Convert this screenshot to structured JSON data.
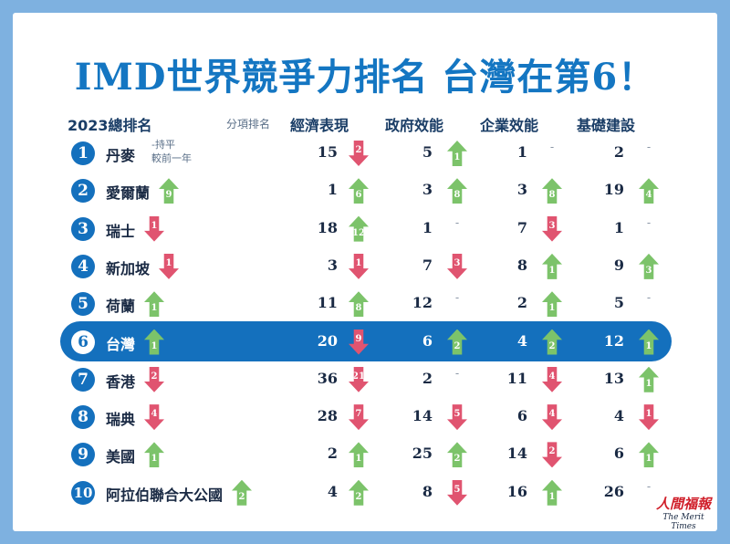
{
  "title": "IMD世界競爭力排名 台灣在第6！",
  "chart_data": {
    "type": "table",
    "columns": {
      "overall": "2023總排名",
      "sub": "分項排名",
      "economy": "經濟表現",
      "government": "政府效能",
      "business": "企業效能",
      "infrastructure": "基礎建設"
    },
    "legend_note": {
      "line1": "-持平",
      "line2": "較前一年"
    },
    "highlight_rank": 6,
    "rows": [
      {
        "rank": "1",
        "name": "丹麥",
        "change": null,
        "cells": [
          {
            "value": "15",
            "dir": "down",
            "delta": "2"
          },
          {
            "value": "5",
            "dir": "up",
            "delta": "1"
          },
          {
            "value": "1",
            "dir": "flat",
            "delta": "-"
          },
          {
            "value": "2",
            "dir": "flat",
            "delta": "-"
          }
        ]
      },
      {
        "rank": "2",
        "name": "愛爾蘭",
        "change": {
          "dir": "up",
          "delta": "9"
        },
        "cells": [
          {
            "value": "1",
            "dir": "up",
            "delta": "6"
          },
          {
            "value": "3",
            "dir": "up",
            "delta": "8"
          },
          {
            "value": "3",
            "dir": "up",
            "delta": "8"
          },
          {
            "value": "19",
            "dir": "up",
            "delta": "4"
          }
        ]
      },
      {
        "rank": "3",
        "name": "瑞士",
        "change": {
          "dir": "down",
          "delta": "1"
        },
        "cells": [
          {
            "value": "18",
            "dir": "up",
            "delta": "12"
          },
          {
            "value": "1",
            "dir": "flat",
            "delta": "-"
          },
          {
            "value": "7",
            "dir": "down",
            "delta": "3"
          },
          {
            "value": "1",
            "dir": "flat",
            "delta": "-"
          }
        ]
      },
      {
        "rank": "4",
        "name": "新加坡",
        "change": {
          "dir": "down",
          "delta": "1"
        },
        "cells": [
          {
            "value": "3",
            "dir": "down",
            "delta": "1"
          },
          {
            "value": "7",
            "dir": "down",
            "delta": "3"
          },
          {
            "value": "8",
            "dir": "up",
            "delta": "1"
          },
          {
            "value": "9",
            "dir": "up",
            "delta": "3"
          }
        ]
      },
      {
        "rank": "5",
        "name": "荷蘭",
        "change": {
          "dir": "up",
          "delta": "1"
        },
        "cells": [
          {
            "value": "11",
            "dir": "up",
            "delta": "8"
          },
          {
            "value": "12",
            "dir": "flat",
            "delta": "-"
          },
          {
            "value": "2",
            "dir": "up",
            "delta": "1"
          },
          {
            "value": "5",
            "dir": "flat",
            "delta": "-"
          }
        ]
      },
      {
        "rank": "6",
        "name": "台灣",
        "change": {
          "dir": "up",
          "delta": "1"
        },
        "cells": [
          {
            "value": "20",
            "dir": "down",
            "delta": "9"
          },
          {
            "value": "6",
            "dir": "up",
            "delta": "2"
          },
          {
            "value": "4",
            "dir": "up",
            "delta": "2"
          },
          {
            "value": "12",
            "dir": "up",
            "delta": "1"
          }
        ]
      },
      {
        "rank": "7",
        "name": "香港",
        "change": {
          "dir": "down",
          "delta": "2"
        },
        "cells": [
          {
            "value": "36",
            "dir": "down",
            "delta": "21"
          },
          {
            "value": "2",
            "dir": "flat",
            "delta": "-"
          },
          {
            "value": "11",
            "dir": "down",
            "delta": "4"
          },
          {
            "value": "13",
            "dir": "up",
            "delta": "1"
          }
        ]
      },
      {
        "rank": "8",
        "name": "瑞典",
        "change": {
          "dir": "down",
          "delta": "4"
        },
        "cells": [
          {
            "value": "28",
            "dir": "down",
            "delta": "7"
          },
          {
            "value": "14",
            "dir": "down",
            "delta": "5"
          },
          {
            "value": "6",
            "dir": "down",
            "delta": "4"
          },
          {
            "value": "4",
            "dir": "down",
            "delta": "1"
          }
        ]
      },
      {
        "rank": "9",
        "name": "美國",
        "change": {
          "dir": "up",
          "delta": "1"
        },
        "cells": [
          {
            "value": "2",
            "dir": "up",
            "delta": "1"
          },
          {
            "value": "25",
            "dir": "up",
            "delta": "2"
          },
          {
            "value": "14",
            "dir": "down",
            "delta": "2"
          },
          {
            "value": "6",
            "dir": "up",
            "delta": "1"
          }
        ]
      },
      {
        "rank": "10",
        "name": "阿拉伯聯合大公國",
        "change": {
          "dir": "up",
          "delta": "2"
        },
        "cells": [
          {
            "value": "4",
            "dir": "up",
            "delta": "2"
          },
          {
            "value": "8",
            "dir": "down",
            "delta": "5"
          },
          {
            "value": "16",
            "dir": "up",
            "delta": "1"
          },
          {
            "value": "26",
            "dir": "flat",
            "delta": "-"
          }
        ]
      }
    ],
    "colors": {
      "up": "#7cc36a",
      "down": "#e05470",
      "brand": "#1470bd",
      "background": "#7eb1e0"
    }
  },
  "logo": {
    "zh": "人間福報",
    "en": "The Merit Times"
  }
}
